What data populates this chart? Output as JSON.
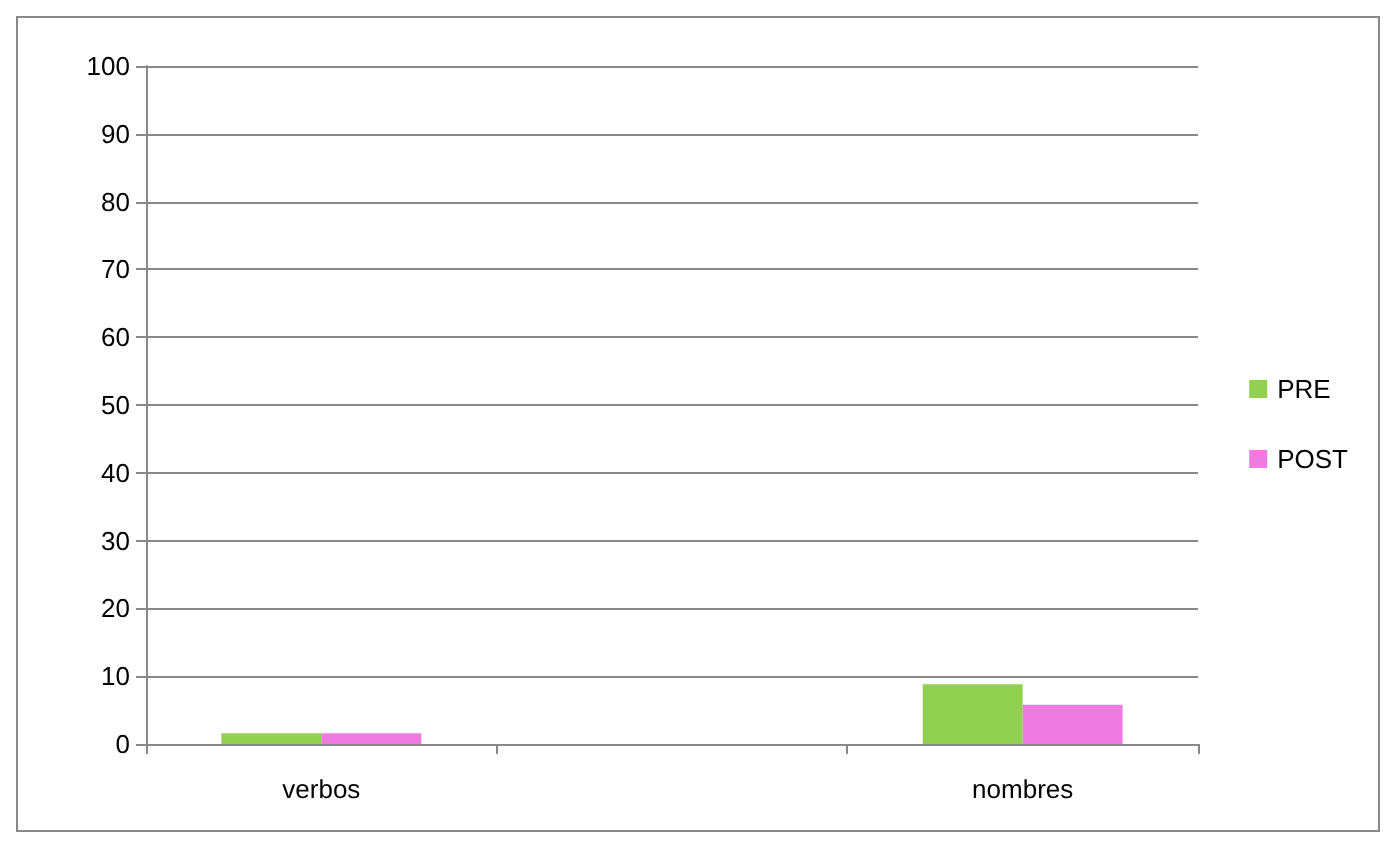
{
  "chart_data": {
    "type": "bar",
    "categories": [
      "verbos",
      null,
      "nombres"
    ],
    "series": [
      {
        "name": "PRE",
        "color": "#92d050",
        "values": [
          1.6,
          null,
          8.8
        ]
      },
      {
        "name": "POST",
        "color": "#f07be0",
        "values": [
          1.6,
          null,
          5.8
        ]
      }
    ],
    "ylim": [
      0,
      100
    ],
    "yticks": [
      0,
      10,
      20,
      30,
      40,
      50,
      60,
      70,
      80,
      90,
      100
    ],
    "grid": "y",
    "legend": "right"
  }
}
